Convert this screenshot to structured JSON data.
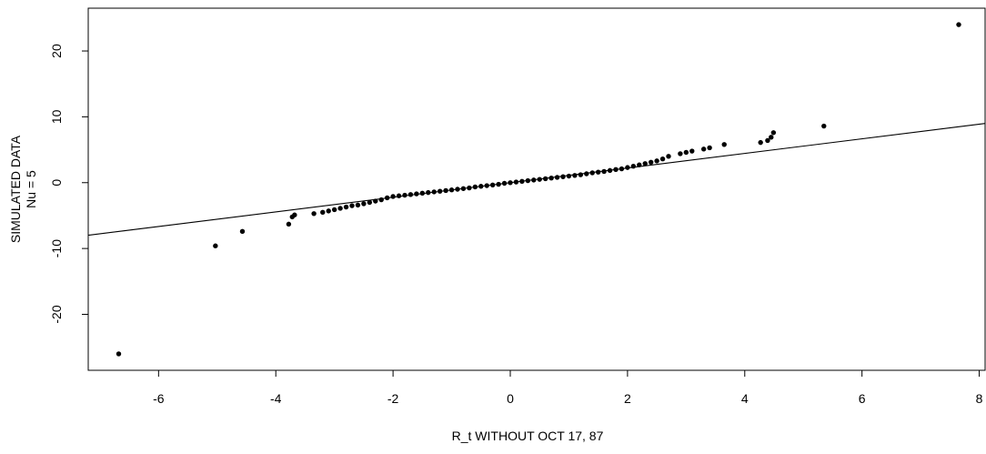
{
  "chart_data": {
    "type": "scatter",
    "title": "",
    "xlabel": "R_t WITHOUT OCT 17, 87",
    "ylabel_lines": [
      "SIMULATED DATA",
      "Nu = 5"
    ],
    "xlim": [
      -7.2,
      8.1
    ],
    "ylim": [
      -28.5,
      26.5
    ],
    "xticks": [
      -6,
      -4,
      -2,
      0,
      2,
      4,
      6,
      8
    ],
    "yticks": [
      -20,
      -10,
      0,
      10,
      20
    ],
    "grid": false,
    "reference_line": {
      "slope": 1.11,
      "intercept": 0.0
    },
    "outlier_points": {
      "x": [
        -6.68,
        -5.03,
        -4.57,
        -3.78,
        -3.72,
        -3.68,
        -3.35,
        4.27,
        4.39,
        4.45,
        4.49,
        5.35,
        7.65
      ],
      "y": [
        -26.0,
        -9.6,
        -7.4,
        -6.3,
        -5.2,
        -4.9,
        -4.7,
        6.1,
        6.4,
        6.9,
        7.6,
        8.6,
        24.0
      ]
    },
    "quantile_points": {
      "x": [
        -3.2,
        -3.1,
        -3.0,
        -2.9,
        -2.8,
        -2.7,
        -2.6,
        -2.5,
        -2.4,
        -2.3,
        -2.2,
        -2.1,
        -2.0,
        -1.9,
        -1.8,
        -1.7,
        -1.6,
        -1.5,
        -1.4,
        -1.3,
        -1.2,
        -1.1,
        -1.0,
        -0.9,
        -0.8,
        -0.7,
        -0.6,
        -0.5,
        -0.4,
        -0.3,
        -0.2,
        -0.1,
        0.0,
        0.1,
        0.2,
        0.3,
        0.4,
        0.5,
        0.6,
        0.7,
        0.8,
        0.9,
        1.0,
        1.1,
        1.2,
        1.3,
        1.4,
        1.5,
        1.6,
        1.7,
        1.8,
        1.9,
        2.0,
        2.1,
        2.2,
        2.3,
        2.4,
        2.5,
        2.6,
        2.7,
        2.9,
        3.0,
        3.1,
        3.3,
        3.4,
        3.65
      ],
      "y": [
        -4.5,
        -4.3,
        -4.1,
        -3.9,
        -3.7,
        -3.5,
        -3.4,
        -3.2,
        -3.0,
        -2.8,
        -2.6,
        -2.3,
        -2.1,
        -2.0,
        -1.9,
        -1.8,
        -1.7,
        -1.6,
        -1.5,
        -1.4,
        -1.3,
        -1.2,
        -1.1,
        -1.0,
        -0.9,
        -0.8,
        -0.65,
        -0.55,
        -0.45,
        -0.35,
        -0.25,
        -0.1,
        0.0,
        0.1,
        0.2,
        0.3,
        0.4,
        0.5,
        0.6,
        0.7,
        0.8,
        0.9,
        1.0,
        1.1,
        1.2,
        1.35,
        1.5,
        1.6,
        1.7,
        1.85,
        2.0,
        2.1,
        2.3,
        2.5,
        2.7,
        2.9,
        3.1,
        3.3,
        3.6,
        4.0,
        4.4,
        4.6,
        4.8,
        5.1,
        5.3,
        5.8
      ]
    }
  }
}
